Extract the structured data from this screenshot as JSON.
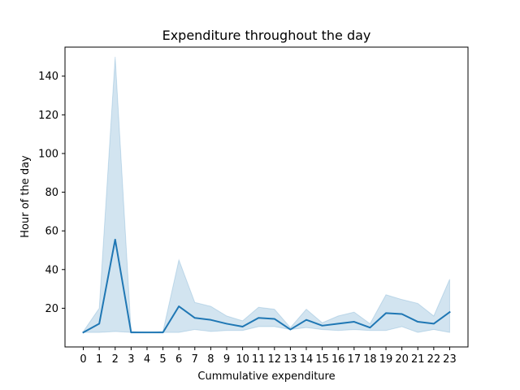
{
  "chart_data": {
    "type": "line",
    "title": "Expenditure throughout the day",
    "xlabel": "Cummulative expenditure",
    "ylabel": "Hour of the day",
    "x": [
      0,
      1,
      2,
      3,
      4,
      5,
      6,
      7,
      8,
      9,
      10,
      11,
      12,
      13,
      14,
      15,
      16,
      17,
      18,
      19,
      20,
      21,
      22,
      23
    ],
    "series": [
      {
        "values": [
          7.5,
          12,
          55.5,
          7.5,
          7.5,
          7.5,
          21,
          15,
          14,
          12,
          10.5,
          15,
          14.5,
          9,
          14,
          11,
          12,
          13,
          10,
          17.5,
          17,
          13,
          12,
          18
        ],
        "ci_lower": [
          7.5,
          7.5,
          8,
          7.5,
          7.5,
          7.5,
          7.5,
          9,
          8,
          8.5,
          8.5,
          10.5,
          10.5,
          9,
          10,
          9,
          8.5,
          9,
          8.5,
          8.5,
          10.5,
          7.5,
          9,
          7.5
        ],
        "ci_upper": [
          8,
          20,
          150,
          8,
          7.5,
          8,
          45,
          23,
          21,
          16,
          13.5,
          20.5,
          19.5,
          10,
          19.5,
          12.5,
          16,
          18,
          12,
          27,
          24.5,
          22.5,
          16,
          35
        ]
      }
    ],
    "ylim": [
      0,
      155
    ],
    "xlim": [
      -1.15,
      24.15
    ],
    "yticks": [
      20,
      40,
      60,
      80,
      100,
      120,
      140
    ],
    "grid": false,
    "colors": {
      "line": "#1f77b4",
      "band": "#1f77b4"
    }
  }
}
